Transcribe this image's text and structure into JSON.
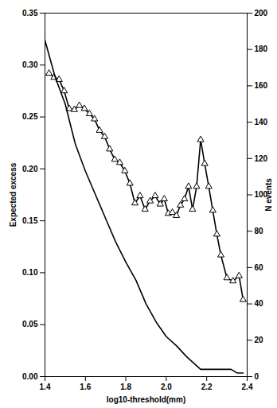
{
  "chart_data": {
    "type": "line",
    "xlabel": "log10-threshold(mm)",
    "ylabel": "Expected excess",
    "y2label": "N events",
    "xlim": [
      1.4,
      2.4
    ],
    "xticks": [
      {
        "value": 1.4,
        "label": "1.4"
      },
      {
        "value": 1.6,
        "label": "1.6"
      },
      {
        "value": 1.8,
        "label": "1.8"
      },
      {
        "value": 2.0,
        "label": "2.0"
      },
      {
        "value": 2.2,
        "label": "2.2"
      },
      {
        "value": 2.4,
        "label": "2.4"
      }
    ],
    "ylim": [
      0,
      0.35
    ],
    "yticks": [
      {
        "value": 0,
        "label": "0.00"
      },
      {
        "value": 0.05,
        "label": "0.05"
      },
      {
        "value": 0.1,
        "label": "0.10"
      },
      {
        "value": 0.15,
        "label": "0.15"
      },
      {
        "value": 0.2,
        "label": "0.20"
      },
      {
        "value": 0.25,
        "label": "0.25"
      },
      {
        "value": 0.3,
        "label": "0.30"
      },
      {
        "value": 0.35,
        "label": "0.35"
      }
    ],
    "y2lim": [
      0,
      200
    ],
    "y2ticks": [
      0,
      20,
      40,
      60,
      80,
      100,
      120,
      140,
      160,
      180,
      200
    ],
    "series": [
      {
        "color": "#000000",
        "marker": "triangle",
        "x": [
          1.42,
          1.445,
          1.47,
          1.495,
          1.52,
          1.545,
          1.57,
          1.595,
          1.62,
          1.645,
          1.67,
          1.695,
          1.72,
          1.745,
          1.77,
          1.795,
          1.82,
          1.845,
          1.87,
          1.895,
          1.92,
          1.945,
          1.97,
          1.99,
          2.01,
          2.03,
          2.05,
          2.07,
          2.09,
          2.11,
          2.13,
          2.15,
          2.17,
          2.19,
          2.21,
          2.23,
          2.25,
          2.27,
          2.3,
          2.33,
          2.36,
          2.38
        ],
        "values": [
          0.292,
          0.288,
          0.286,
          0.275,
          0.258,
          0.257,
          0.261,
          0.258,
          0.253,
          0.248,
          0.237,
          0.231,
          0.219,
          0.209,
          0.206,
          0.198,
          0.186,
          0.167,
          0.174,
          0.161,
          0.169,
          0.174,
          0.166,
          0.171,
          0.157,
          0.158,
          0.155,
          0.165,
          0.171,
          0.183,
          0.161,
          0.183,
          0.228,
          0.205,
          0.183,
          0.16,
          0.137,
          0.117,
          0.095,
          0.092,
          0.097,
          0.074
        ]
      },
      {
        "color": "#000000",
        "axis": "y2",
        "x": [
          1.4,
          1.45,
          1.5,
          1.55,
          1.6,
          1.65,
          1.7,
          1.75,
          1.8,
          1.85,
          1.9,
          1.95,
          2.0,
          2.05,
          2.1,
          2.15,
          2.17,
          2.2,
          2.25,
          2.3,
          2.32,
          2.35,
          2.38
        ],
        "values": [
          185,
          165,
          150,
          128,
          113,
          100,
          87,
          74,
          63,
          53,
          40,
          30,
          22,
          17,
          11,
          6,
          4,
          4,
          4,
          4,
          4,
          2,
          2
        ]
      }
    ]
  }
}
